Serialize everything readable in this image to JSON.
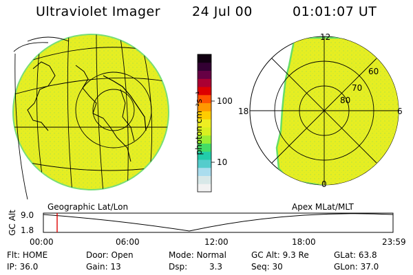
{
  "header": {
    "instrument": "Ultraviolet Imager",
    "date": "24 Jul 00",
    "time": "01:01:07 UT"
  },
  "colorbar": {
    "unit_label": "photon cm⁻²s⁻¹",
    "ticks": [
      "100",
      "10"
    ],
    "colors": [
      "#f2f2f2",
      "#d8e8e8",
      "#aaddee",
      "#55cccc",
      "#22ccaa",
      "#44dd66",
      "#99ee33",
      "#d8f020",
      "#eeee22",
      "#ffcc00",
      "#ff9900",
      "#ff5500",
      "#dd0000",
      "#aa0033",
      "#660044",
      "#330033",
      "#110011"
    ]
  },
  "polar": {
    "labels_mlt": [
      "12",
      "18",
      "6",
      "0"
    ],
    "labels_lat": [
      "80",
      "70",
      "60"
    ]
  },
  "panel_labels": {
    "left": "Geographic Lat/Lon",
    "right": "Apex MLat/MLT"
  },
  "timeline": {
    "ylabel": "GC Alt",
    "yticks": [
      "9.0",
      "1.8"
    ],
    "xticks": [
      "00:00",
      "06:00",
      "12:00",
      "18:00",
      "23:59"
    ],
    "marker_color": "#dd0000"
  },
  "footer": [
    [
      {
        "label": "Flt:",
        "value": "HOME"
      },
      {
        "label": "Door:",
        "value": "Open"
      },
      {
        "label": "Mode:",
        "value": "Normal"
      },
      {
        "label": "GC Alt:",
        "value": "9.3 Re"
      },
      {
        "label": "GLat:",
        "value": "63.8"
      }
    ],
    [
      {
        "label": "IP:",
        "value": "36.0"
      },
      {
        "label": "Gain:",
        "value": "13"
      },
      {
        "label": "Dsp:",
        "value": "3.3"
      },
      {
        "label": "Seq:",
        "value": "30"
      },
      {
        "label": "GLon:",
        "value": "37.0"
      }
    ]
  ],
  "colors": {
    "emission": "#e8f020",
    "edge": "#66dd66"
  }
}
